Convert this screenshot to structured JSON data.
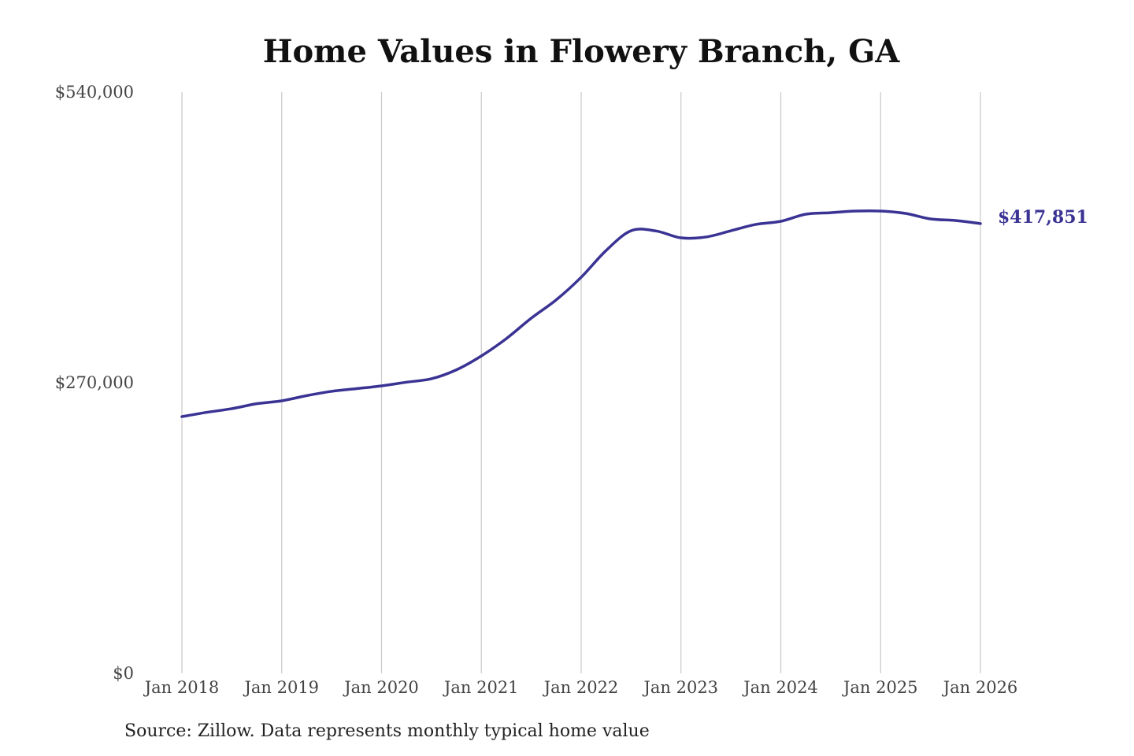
{
  "chart_data": {
    "type": "line",
    "title": "Home Values in Flowery Branch, GA",
    "xlabel": "",
    "ylabel": "",
    "source": "Source: Zillow. Data represents monthly typical home value",
    "ylim": [
      0,
      540000
    ],
    "xlim": [
      2018,
      2026
    ],
    "y_ticks": [
      {
        "value": 0,
        "label": "$0"
      },
      {
        "value": 270000,
        "label": "$270,000"
      },
      {
        "value": 540000,
        "label": "$540,000"
      }
    ],
    "x_ticks": [
      {
        "value": 2018,
        "label": "Jan 2018"
      },
      {
        "value": 2019,
        "label": "Jan 2019"
      },
      {
        "value": 2020,
        "label": "Jan 2020"
      },
      {
        "value": 2021,
        "label": "Jan 2021"
      },
      {
        "value": 2022,
        "label": "Jan 2022"
      },
      {
        "value": 2023,
        "label": "Jan 2023"
      },
      {
        "value": 2024,
        "label": "Jan 2024"
      },
      {
        "value": 2025,
        "label": "Jan 2025"
      },
      {
        "value": 2026,
        "label": "Jan 2026"
      }
    ],
    "grid": "vertical",
    "line_color": "#3a3394",
    "end_label": "$417,851",
    "series": [
      {
        "x": [
          2018,
          2018.25,
          2018.5,
          2018.75,
          2019,
          2019.25,
          2019.5,
          2019.75,
          2020,
          2020.25,
          2020.5,
          2020.75,
          2021,
          2021.25,
          2021.5,
          2021.75,
          2022,
          2022.25,
          2022.5,
          2022.75,
          2023,
          2023.25,
          2023.5,
          2023.75,
          2024,
          2024.25,
          2024.5,
          2024.75,
          2025,
          2025.25,
          2025.5,
          2025.75,
          2026
        ],
        "y": [
          238500,
          242500,
          245900,
          250500,
          253200,
          258000,
          262000,
          264500,
          267100,
          270500,
          273700,
          282000,
          294900,
          311000,
          330000,
          347000,
          368000,
          392900,
          411200,
          411000,
          404600,
          405400,
          411200,
          417100,
          420000,
          426600,
          428000,
          429500,
          429500,
          427300,
          422200,
          420700,
          417851
        ]
      }
    ]
  }
}
